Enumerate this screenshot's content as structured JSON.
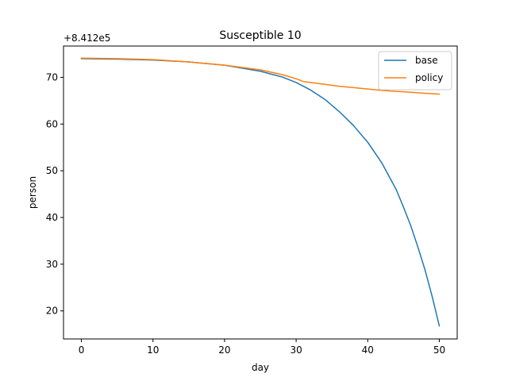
{
  "chart_data": {
    "type": "line",
    "title": "Susceptible 10",
    "xlabel": "day",
    "ylabel": "person",
    "offset_label": "+8.412e5",
    "xlim": [
      -2.5,
      52.5
    ],
    "ylim": [
      14.0,
      76.7
    ],
    "xticks": [
      0,
      10,
      20,
      30,
      40,
      50
    ],
    "yticks": [
      20,
      30,
      40,
      50,
      60,
      70
    ],
    "legend_position": "top-right",
    "grid": false,
    "series": [
      {
        "name": "base",
        "color": "#1f77b4",
        "x": [
          0,
          5,
          10,
          15,
          20,
          25,
          28,
          30,
          32,
          34,
          36,
          38,
          40,
          42,
          44,
          45,
          46,
          47,
          48,
          49,
          50
        ],
        "y": [
          74.0,
          73.9,
          73.7,
          73.3,
          72.6,
          71.3,
          70.1,
          68.9,
          67.3,
          65.3,
          62.7,
          59.7,
          56.1,
          51.6,
          45.9,
          42.2,
          38.3,
          33.7,
          28.8,
          23.1,
          16.8
        ]
      },
      {
        "name": "policy",
        "color": "#ff7f0e",
        "x": [
          0,
          5,
          10,
          15,
          20,
          25,
          28,
          30,
          31,
          32,
          34,
          36,
          38,
          40,
          42,
          44,
          46,
          48,
          50
        ],
        "y": [
          74.1,
          74.0,
          73.8,
          73.3,
          72.6,
          71.6,
          70.6,
          69.7,
          69.1,
          68.9,
          68.5,
          68.1,
          67.8,
          67.5,
          67.2,
          67.0,
          66.8,
          66.6,
          66.4
        ]
      }
    ]
  }
}
